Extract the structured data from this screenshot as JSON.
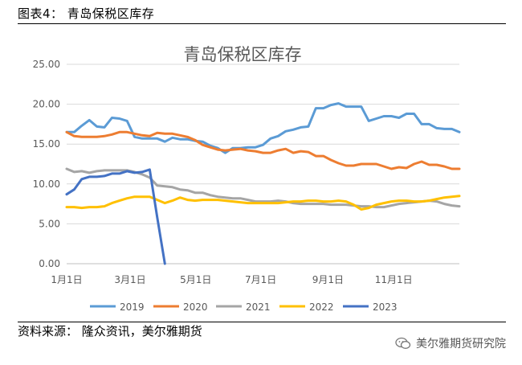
{
  "figure_title": "图表4：  青岛保税区库存",
  "source_text": "资料来源：  隆众资讯，美尔雅期货",
  "watermark_text": "美尔雅期货研究院",
  "watermark_icon": "wechat-icon",
  "chart_data": {
    "type": "line",
    "title": "青岛保税区库存",
    "xlabel": "",
    "ylabel": "",
    "ylim": [
      0,
      25
    ],
    "yticks": [
      "0.00",
      "5.00",
      "10.00",
      "15.00",
      "20.00",
      "25.00"
    ],
    "xticks": [
      {
        "label": "1月1日",
        "week": 0
      },
      {
        "label": "3月1日",
        "week": 8.4
      },
      {
        "label": "5月1日",
        "week": 17.1
      },
      {
        "label": "7月1日",
        "week": 25.7
      },
      {
        "label": "9月1日",
        "week": 34.6
      },
      {
        "label": "11月1日",
        "week": 43.3
      }
    ],
    "xmax_week": 52,
    "grid": "horizontal",
    "legend_position": "bottom",
    "series": [
      {
        "name": "2019",
        "color": "#5b9bd5",
        "values": [
          16.5,
          16.5,
          17.3,
          18.0,
          17.2,
          17.1,
          18.3,
          18.2,
          17.9,
          15.9,
          15.7,
          15.7,
          15.7,
          15.3,
          15.8,
          15.6,
          15.6,
          15.4,
          15.3,
          14.8,
          14.5,
          13.9,
          14.5,
          14.5,
          14.6,
          14.6,
          14.9,
          15.7,
          16.0,
          16.6,
          16.8,
          17.1,
          17.2,
          19.5,
          19.5,
          19.9,
          20.1,
          19.7,
          19.7,
          19.7,
          17.9,
          18.2,
          18.5,
          18.5,
          18.3,
          18.8,
          18.8,
          17.5,
          17.5,
          17.0,
          16.9,
          16.9,
          16.5
        ]
      },
      {
        "name": "2020",
        "color": "#ed7d31",
        "values": [
          16.5,
          16.0,
          15.9,
          15.9,
          15.9,
          16.0,
          16.2,
          16.5,
          16.5,
          16.3,
          16.1,
          16.0,
          16.4,
          16.3,
          16.3,
          16.1,
          15.9,
          15.5,
          14.9,
          14.6,
          14.3,
          14.2,
          14.3,
          14.4,
          14.2,
          14.1,
          13.9,
          13.9,
          14.2,
          14.4,
          13.9,
          14.1,
          14.0,
          13.5,
          13.5,
          13.0,
          12.6,
          12.3,
          12.3,
          12.5,
          12.5,
          12.5,
          12.2,
          11.9,
          12.1,
          12.0,
          12.5,
          12.8,
          12.4,
          12.4,
          12.2,
          11.9,
          11.9
        ]
      },
      {
        "name": "2021",
        "color": "#a5a5a5",
        "values": [
          11.9,
          11.5,
          11.6,
          11.4,
          11.6,
          11.7,
          11.7,
          11.7,
          11.7,
          11.5,
          11.2,
          10.8,
          9.8,
          9.7,
          9.6,
          9.3,
          9.2,
          8.9,
          8.9,
          8.6,
          8.4,
          8.3,
          8.2,
          8.2,
          8.0,
          7.8,
          7.8,
          7.8,
          7.9,
          7.8,
          7.6,
          7.5,
          7.5,
          7.5,
          7.5,
          7.4,
          7.4,
          7.4,
          7.3,
          7.2,
          7.2,
          7.1,
          7.1,
          7.3,
          7.5,
          7.6,
          7.7,
          7.8,
          7.9,
          7.8,
          7.5,
          7.3,
          7.2
        ]
      },
      {
        "name": "2022",
        "color": "#ffc000",
        "values": [
          7.1,
          7.1,
          7.0,
          7.1,
          7.1,
          7.2,
          7.6,
          7.9,
          8.2,
          8.4,
          8.4,
          8.4,
          8.0,
          7.6,
          7.9,
          8.3,
          8.0,
          7.9,
          8.0,
          8.0,
          8.0,
          7.9,
          7.8,
          7.7,
          7.6,
          7.6,
          7.6,
          7.6,
          7.6,
          7.7,
          7.8,
          7.8,
          7.9,
          7.9,
          7.8,
          7.8,
          7.9,
          7.8,
          7.4,
          6.8,
          7.0,
          7.4,
          7.6,
          7.8,
          7.9,
          7.9,
          7.8,
          7.8,
          7.9,
          8.1,
          8.3,
          8.4,
          8.5
        ]
      },
      {
        "name": "2023",
        "color": "#4472c4",
        "values": [
          8.7,
          9.3,
          10.6,
          10.9,
          10.9,
          11.0,
          11.3,
          11.3,
          11.6,
          11.4,
          11.5,
          11.8,
          5.8,
          0.0
        ]
      }
    ]
  }
}
